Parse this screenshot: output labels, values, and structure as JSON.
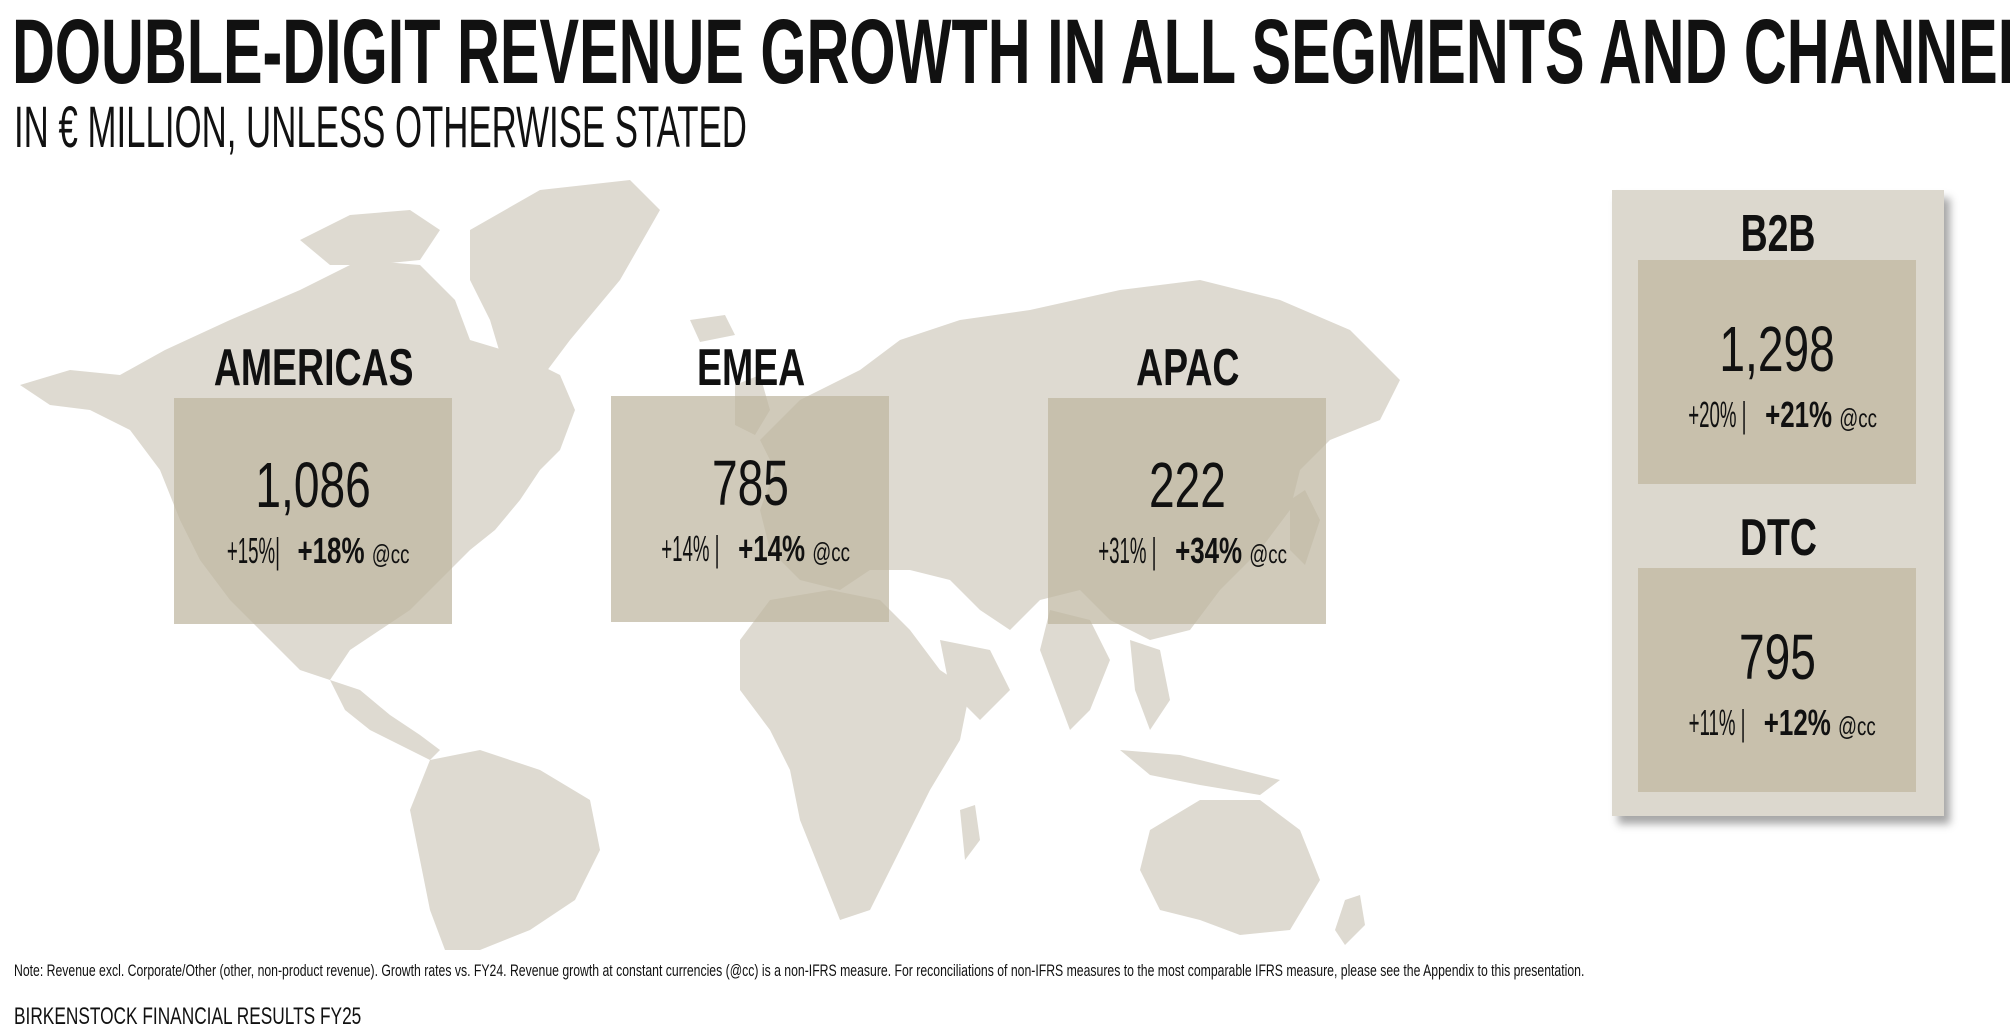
{
  "header": {
    "title": "DOUBLE-DIGIT REVENUE GROWTH IN ALL SEGMENTS AND CHANNELS",
    "subtitle": "IN € MILLION, UNLESS OTHERWISE STATED"
  },
  "colors": {
    "map": "#dedad1",
    "region_box": "#beb5a0",
    "panel": "#dcd8ce",
    "channel_box": "#c8c0ac",
    "text": "#111111"
  },
  "regions": [
    {
      "name": "AMERICAS",
      "value": "1,086",
      "growth_reported": "+15%|",
      "growth_cc": "+18%",
      "cc_label": "@cc"
    },
    {
      "name": "EMEA",
      "value": "785",
      "growth_reported": "+14% |",
      "growth_cc": "+14%",
      "cc_label": "@cc"
    },
    {
      "name": "APAC",
      "value": "222",
      "growth_reported": "+31% |",
      "growth_cc": "+34%",
      "cc_label": "@cc"
    }
  ],
  "channels": [
    {
      "name": "B2B",
      "value": "1,298",
      "growth_reported": "+20% |",
      "growth_cc": "+21%",
      "cc_label": "@cc"
    },
    {
      "name": "DTC",
      "value": "795",
      "growth_reported": "+11% |",
      "growth_cc": "+12%",
      "cc_label": "@cc"
    }
  ],
  "footnote": "Note: Revenue excl. Corporate/Other (other, non-product revenue). Growth rates vs. FY24. Revenue growth at constant currencies (@cc) is a non-IFRS measure. For reconciliations of non-IFRS measures to the most comparable IFRS measure, please see the Appendix to this presentation.",
  "footer": "BIRKENSTOCK FINANCIAL RESULTS FY25"
}
